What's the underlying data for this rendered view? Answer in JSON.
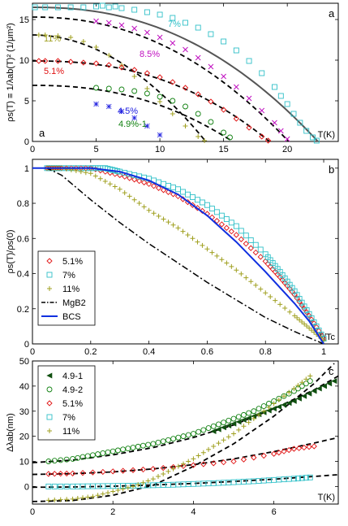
{
  "chart_data": [
    {
      "type": "scatter",
      "panel_letter": "a",
      "corner_label": "a",
      "ylabel": "ρs(T) ≡ 1/λab(T)² (1/μm²)",
      "xlabel_unit": "T(K)",
      "xlim": [
        0,
        24
      ],
      "ylim": [
        0,
        17
      ],
      "xticks": [
        0,
        5,
        10,
        15,
        20
      ],
      "yticks": [
        0,
        5,
        10,
        15
      ],
      "series": [
        {
          "name": "7%",
          "color": "#30c0c8",
          "marker": "square",
          "label_color": "#30c0c8",
          "x": [
            0.2,
            1,
            2,
            3,
            4,
            5,
            5.5,
            6,
            6.5,
            7,
            8,
            9,
            10,
            11,
            12,
            13,
            14,
            15,
            16,
            17,
            18,
            19,
            19.5,
            20,
            20.5,
            21,
            21.5,
            22,
            22.3
          ],
          "y": [
            16.5,
            16.5,
            16.5,
            16.5,
            16.5,
            16.6,
            16.7,
            16.5,
            16.6,
            16.4,
            16.2,
            15.9,
            15.6,
            15.2,
            14.6,
            14.0,
            13.2,
            12.3,
            11.2,
            9.9,
            8.4,
            6.7,
            5.6,
            4.6,
            3.4,
            2.3,
            1.3,
            0.5,
            0.1
          ],
          "fit": "solid"
        },
        {
          "name": "8.5%",
          "color": "#c010c0",
          "marker": "x",
          "label_color": "#c010c0",
          "x": [
            5,
            6,
            7,
            8,
            9,
            10,
            11,
            12,
            13,
            14,
            15,
            16,
            17,
            18,
            19,
            19.5,
            20
          ],
          "y": [
            14.8,
            14.6,
            14.3,
            13.9,
            13.4,
            12.8,
            12.1,
            11.3,
            10.3,
            9.2,
            8.0,
            6.7,
            5.3,
            3.8,
            2.3,
            1.3,
            0.3
          ],
          "fit": "dashed"
        },
        {
          "name": "11%",
          "color": "#a0a020",
          "marker": "plus",
          "label_color": "#a0a020",
          "x": [
            0.5,
            1,
            2,
            3,
            4,
            5,
            6,
            7,
            8,
            9,
            10,
            11,
            12,
            13,
            13.5
          ],
          "y": [
            13.1,
            13.1,
            13.0,
            12.8,
            12.3,
            11.6,
            10.6,
            9.4,
            8.0,
            6.5,
            4.9,
            3.4,
            1.9,
            0.6,
            0.1
          ],
          "fit": "dashed"
        },
        {
          "name": "5.1%",
          "color": "#e01010",
          "marker": "diamond",
          "label_color": "#e01010",
          "x": [
            0.5,
            1,
            2,
            3,
            4,
            5,
            6,
            7,
            8,
            9,
            10,
            11,
            12,
            13,
            14,
            15,
            16,
            17,
            18,
            18.5
          ],
          "y": [
            9.9,
            9.9,
            9.9,
            9.8,
            9.7,
            9.6,
            9.4,
            9.1,
            8.8,
            8.4,
            7.9,
            7.3,
            6.6,
            5.8,
            4.9,
            3.9,
            2.8,
            1.7,
            0.6,
            0.1
          ],
          "fit": "dashed"
        },
        {
          "name": "4.9%-1",
          "color": "#108010",
          "marker": "circle",
          "label_color": "#108010",
          "x": [
            5,
            6,
            7,
            8,
            9,
            10,
            11,
            12,
            13,
            14,
            15,
            15.5
          ],
          "y": [
            6.6,
            6.5,
            6.4,
            6.2,
            5.9,
            5.5,
            5.0,
            4.3,
            3.4,
            2.4,
            1.1,
            0.5
          ],
          "fit": "dashed"
        },
        {
          "name": "4.5%",
          "color": "#2020e0",
          "marker": "star",
          "label_color": "#2020e0",
          "x": [
            5,
            6,
            7,
            8,
            9,
            10
          ],
          "y": [
            4.6,
            4.3,
            3.7,
            2.9,
            1.9,
            0.8
          ],
          "fit": "none"
        }
      ]
    },
    {
      "type": "scatter",
      "panel_letter": "b",
      "ylabel": "ρs(T)/ρs(0)",
      "xlabel_unit": "T/Tc",
      "xlim": [
        0,
        1.05
      ],
      "ylim": [
        0,
        1.05
      ],
      "xticks": [
        0,
        0.2,
        0.4,
        0.6,
        0.8,
        1
      ],
      "yticks": [
        0,
        0.2,
        0.4,
        0.6,
        0.8,
        1
      ],
      "legend_position": "lower-left",
      "series": [
        {
          "name": "5.1%",
          "color": "#e01010",
          "marker": "diamond",
          "x": [
            0.05,
            0.1,
            0.2,
            0.3,
            0.4,
            0.5,
            0.6,
            0.7,
            0.8,
            0.85,
            0.9,
            0.95,
            1.0
          ],
          "y": [
            1.0,
            1.0,
            1.0,
            0.96,
            0.91,
            0.84,
            0.74,
            0.62,
            0.47,
            0.38,
            0.28,
            0.16,
            0.03
          ]
        },
        {
          "name": "7%",
          "color": "#30c0c8",
          "marker": "square",
          "x": [
            0.05,
            0.1,
            0.2,
            0.25,
            0.3,
            0.4,
            0.5,
            0.6,
            0.7,
            0.8,
            0.85,
            0.9,
            0.95,
            1.0
          ],
          "y": [
            1.0,
            1.0,
            1.0,
            1.0,
            0.98,
            0.94,
            0.88,
            0.79,
            0.67,
            0.51,
            0.41,
            0.3,
            0.17,
            0.03
          ]
        },
        {
          "name": "11%",
          "color": "#a0a020",
          "marker": "plus",
          "x": [
            0.05,
            0.1,
            0.2,
            0.3,
            0.4,
            0.5,
            0.6,
            0.7,
            0.8,
            0.9,
            0.95,
            1.0
          ],
          "y": [
            1.0,
            1.0,
            0.97,
            0.88,
            0.76,
            0.66,
            0.54,
            0.42,
            0.29,
            0.16,
            0.09,
            0.02
          ]
        },
        {
          "name": "MgB2",
          "color": "#000000",
          "marker": "line-dashdot",
          "x": [
            0,
            0.05,
            0.1,
            0.15,
            0.2,
            0.3,
            0.4,
            0.5,
            0.6,
            0.7,
            0.8,
            0.9,
            1.0
          ],
          "y": [
            1.0,
            1.0,
            0.96,
            0.89,
            0.82,
            0.69,
            0.57,
            0.46,
            0.35,
            0.25,
            0.15,
            0.07,
            0.0
          ]
        },
        {
          "name": "BCS",
          "color": "#1030e0",
          "marker": "line-solid",
          "x": [
            0,
            0.1,
            0.2,
            0.3,
            0.4,
            0.5,
            0.6,
            0.7,
            0.8,
            0.9,
            0.95,
            1.0
          ],
          "y": [
            1.0,
            1.0,
            1.0,
            0.98,
            0.93,
            0.85,
            0.73,
            0.58,
            0.41,
            0.23,
            0.13,
            0.0
          ]
        }
      ]
    },
    {
      "type": "scatter",
      "panel_letter": "c",
      "ylabel": "Δλab(nm)",
      "xlabel_unit": "T(K)",
      "xlim": [
        0,
        7.6
      ],
      "ylim": [
        -7,
        50
      ],
      "xticks": [
        0,
        2,
        4,
        6
      ],
      "yticks": [
        0,
        10,
        20,
        30,
        40,
        50
      ],
      "legend_position": "upper-left",
      "series": [
        {
          "name": "4.9-1",
          "color": "#105010",
          "marker": "triangle-left",
          "x": [
            4.5,
            5,
            5.5,
            6,
            6.5,
            7,
            7.5
          ],
          "y": [
            22,
            25,
            28,
            31,
            34,
            38,
            42
          ]
        },
        {
          "name": "4.9-2",
          "color": "#108010",
          "marker": "circle",
          "x": [
            0.4,
            1,
            1.5,
            2,
            2.5,
            3,
            3.5,
            4,
            4.5,
            5,
            5.5,
            6,
            6.5,
            6.9
          ],
          "y": [
            10,
            11,
            12.5,
            14,
            15.5,
            17,
            19,
            21,
            24,
            27,
            30,
            34,
            38,
            42
          ]
        },
        {
          "name": "5.1%",
          "color": "#e01010",
          "marker": "diamond",
          "x": [
            0.4,
            1,
            2,
            3,
            4,
            5,
            6,
            6.5,
            7
          ],
          "y": [
            5,
            5.2,
            6,
            7,
            8.5,
            10,
            13,
            15,
            16
          ]
        },
        {
          "name": "7%",
          "color": "#30c0c8",
          "marker": "square",
          "x": [
            0.4,
            1,
            1.5,
            2,
            2.5,
            3,
            3.5,
            4,
            4.5,
            5,
            5.5,
            6,
            6.5,
            6.9
          ],
          "y": [
            0,
            0,
            0.1,
            0.2,
            0.3,
            0.5,
            0.7,
            1,
            1.3,
            1.7,
            2.1,
            2.6,
            3.1,
            3.6
          ]
        },
        {
          "name": "11%",
          "color": "#a0a020",
          "marker": "plus",
          "x": [
            0.4,
            1,
            1.5,
            2,
            2.5,
            3,
            3.5,
            4,
            4.5,
            5,
            5.5,
            6,
            6.5,
            6.9
          ],
          "y": [
            -5.5,
            -5,
            -4,
            -2,
            0,
            3,
            7,
            11,
            16,
            21,
            27,
            33,
            39,
            44
          ]
        }
      ],
      "fits": [
        {
          "x": [
            0,
            1,
            2,
            3,
            4,
            5,
            6,
            7,
            7.6
          ],
          "y": [
            9.5,
            10.5,
            12.6,
            15.5,
            19.5,
            24.5,
            31,
            38.5,
            44
          ]
        },
        {
          "x": [
            0,
            1,
            2,
            3,
            4,
            5,
            6,
            7,
            7.6
          ],
          "y": [
            4.8,
            5.1,
            5.8,
            7.0,
            8.7,
            11,
            13.9,
            17.3,
            19.5
          ]
        },
        {
          "x": [
            0,
            1,
            2,
            3,
            4,
            5,
            6,
            7,
            7.6
          ],
          "y": [
            -0.3,
            -0.2,
            0.1,
            0.6,
            1.2,
            2,
            2.9,
            4.0,
            4.7
          ]
        },
        {
          "x": [
            0,
            1,
            2,
            3,
            4,
            5,
            6,
            7,
            7.5
          ],
          "y": [
            -6,
            -5.6,
            -3.5,
            0.5,
            8,
            17,
            28,
            41,
            49
          ]
        }
      ]
    }
  ]
}
